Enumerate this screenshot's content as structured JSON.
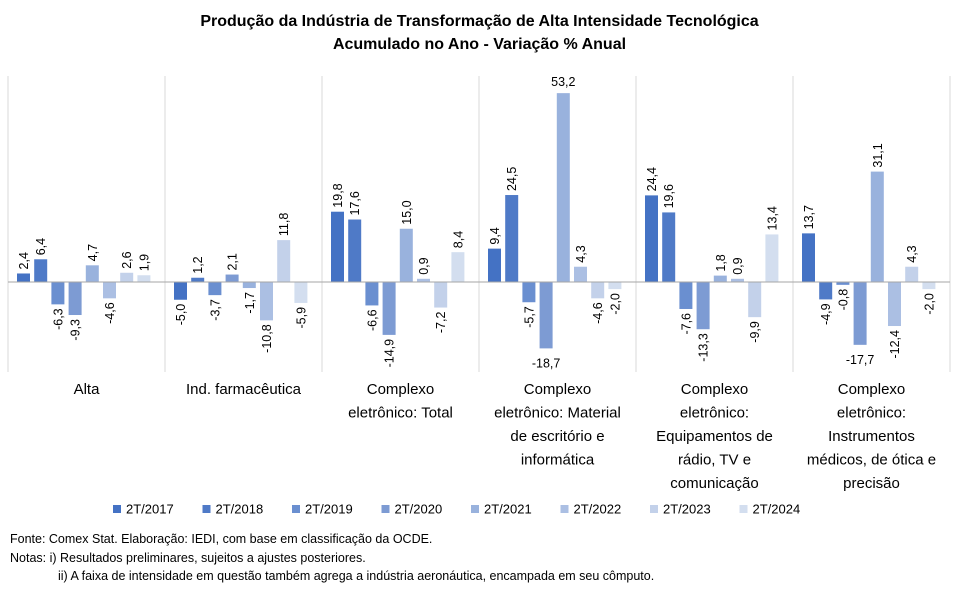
{
  "chart_data": {
    "type": "bar",
    "title": "Produção da Indústria de Transformação de Alta Intensidade Tecnológica",
    "subtitle": "Acumulado no Ano - Variação % Anual",
    "categories": [
      "Alta",
      "Ind. farmacêutica",
      "Complexo eletrônico: Total",
      "Complexo eletrônico: Material de escritório e informática",
      "Complexo eletrônico: Equipamentos de rádio, TV e comunicação",
      "Complexo eletrônico: Instrumentos médicos, de ótica e precisão"
    ],
    "category_lines": [
      [
        "Alta"
      ],
      [
        "Ind. farmacêutica"
      ],
      [
        "Complexo",
        "eletrônico: Total"
      ],
      [
        "Complexo",
        "eletrônico: Material",
        "de escritório e",
        "informática"
      ],
      [
        "Complexo",
        "eletrônico:",
        "Equipamentos de",
        "rádio, TV e",
        "comunicação"
      ],
      [
        "Complexo",
        "eletrônico:",
        "Instrumentos",
        "médicos, de ótica e",
        "precisão"
      ]
    ],
    "series": [
      {
        "name": "2T/2017",
        "color": "#4472c4",
        "values": [
          2.4,
          -5.0,
          19.8,
          9.4,
          24.4,
          13.7
        ]
      },
      {
        "name": "2T/2018",
        "color": "#4f7ac7",
        "values": [
          6.4,
          1.2,
          17.6,
          24.5,
          19.6,
          -4.9
        ]
      },
      {
        "name": "2T/2019",
        "color": "#6a8fd0",
        "values": [
          -6.3,
          -3.7,
          -6.6,
          -5.7,
          -7.6,
          -0.8
        ]
      },
      {
        "name": "2T/2020",
        "color": "#7d9bd3",
        "values": [
          -9.3,
          2.1,
          -14.9,
          -18.7,
          -13.3,
          -17.7
        ]
      },
      {
        "name": "2T/2021",
        "color": "#99b2dd",
        "values": [
          4.7,
          -1.7,
          15.0,
          53.2,
          1.8,
          31.1
        ]
      },
      {
        "name": "2T/2022",
        "color": "#abbfe3",
        "values": [
          -4.6,
          -10.8,
          0.9,
          4.3,
          0.9,
          -12.4
        ]
      },
      {
        "name": "2T/2023",
        "color": "#c3d1ea",
        "values": [
          2.6,
          11.8,
          -7.2,
          -4.6,
          -9.9,
          4.3
        ]
      },
      {
        "name": "2T/2024",
        "color": "#d3deef",
        "values": [
          1.9,
          -5.9,
          8.4,
          -2.0,
          13.4,
          -2.0
        ]
      }
    ],
    "legend_position": "bottom",
    "grid": false
  },
  "notes": {
    "source": "Fonte: Comex Stat. Elaboração: IEDI, com base em classificação da OCDE.",
    "note1": "Notas: i) Resultados preliminares, sujeitos a ajustes posteriores.",
    "note2": "ii) A faixa de intensidade em questão também agrega a indústria aeronáutica, encampada em seu cômputo."
  }
}
